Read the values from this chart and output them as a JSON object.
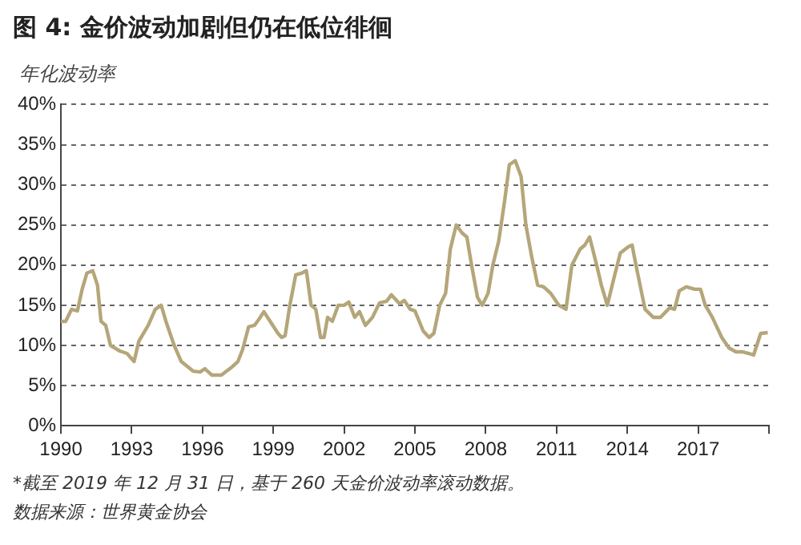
{
  "chart_data": {
    "type": "line",
    "title": "图 4: 金价波动加剧但仍在低位徘徊",
    "ylabel": "年化波动率",
    "annotations": [
      "*截至 2019 年 12 月 31 日，基于 260 天金价波动率滚动数据。",
      "数据来源：世界黄金协会"
    ],
    "x": [
      1990.0,
      1990.2,
      1990.45,
      1990.7,
      1990.9,
      1991.1,
      1991.35,
      1991.55,
      1991.7,
      1991.9,
      1992.1,
      1992.5,
      1992.8,
      1993.1,
      1993.3,
      1993.7,
      1994.0,
      1994.25,
      1994.45,
      1994.8,
      1995.1,
      1995.6,
      1995.9,
      1996.1,
      1996.4,
      1996.8,
      1997.2,
      1997.5,
      1997.7,
      1997.95,
      1998.2,
      1998.4,
      1998.6,
      1998.8,
      1999.2,
      1999.35,
      1999.5,
      1999.7,
      1999.95,
      2000.2,
      2000.4,
      2000.6,
      2000.8,
      2001.0,
      2001.15,
      2001.3,
      2001.5,
      2001.75,
      2002.0,
      2002.2,
      2002.45,
      2002.65,
      2002.9,
      2003.2,
      2003.5,
      2003.8,
      2004.0,
      2004.35,
      2004.55,
      2004.8,
      2005.0,
      2005.35,
      2005.6,
      2005.8,
      2006.05,
      2006.3,
      2006.5,
      2006.75,
      2007.0,
      2007.2,
      2007.4,
      2007.65,
      2007.85,
      2008.1,
      2008.3,
      2008.55,
      2008.8,
      2009.0,
      2009.25,
      2009.5,
      2009.7,
      2009.95,
      2010.2,
      2010.45,
      2010.75,
      2011.1,
      2011.4,
      2011.65,
      2012.0,
      2012.2,
      2012.4,
      2012.7,
      2012.9,
      2013.15,
      2013.4,
      2013.7,
      2014.05,
      2014.2,
      2014.4,
      2014.75,
      2015.1,
      2015.4,
      2015.8,
      2016.0,
      2016.2,
      2016.5,
      2016.85,
      2017.1,
      2017.3,
      2017.6,
      2018.0,
      2018.3,
      2018.6,
      2018.9,
      2019.15,
      2019.35,
      2019.65,
      2019.95
    ],
    "series": [
      {
        "color": "#b5a67a",
        "values": [
          13,
          13,
          14.5,
          14.3,
          17,
          19,
          19.3,
          17.5,
          13,
          12.5,
          10,
          9.3,
          9,
          8,
          10.5,
          12.5,
          14.5,
          15,
          13,
          10,
          8,
          6.8,
          6.7,
          7.1,
          6.3,
          6.3,
          7.2,
          8,
          9.5,
          12.3,
          12.5,
          13.3,
          14.2,
          13.3,
          11.5,
          11,
          11.2,
          15,
          18.8,
          19,
          19.3,
          15,
          14.5,
          11,
          11,
          13.5,
          13,
          15,
          15,
          15.4,
          13.5,
          14.2,
          12.5,
          13.5,
          15.3,
          15.5,
          16.3,
          15.2,
          15.6,
          14.5,
          14.3,
          11.8,
          11,
          11.5,
          15,
          16.5,
          22,
          25,
          24,
          23.5,
          20,
          16,
          15,
          16.5,
          20,
          23,
          28,
          32.5,
          33,
          31,
          25,
          21,
          17.5,
          17.3,
          16.5,
          15,
          14.5,
          20,
          22,
          22.5,
          23.5,
          20,
          17.5,
          15,
          18,
          21.5,
          22.3,
          22.5,
          19.5,
          14.5,
          13.5,
          13.5,
          14.7,
          14.5,
          16.8,
          17.3,
          17,
          17,
          15,
          13.5,
          11,
          9.7,
          9.2,
          9.2,
          9,
          8.8,
          11.5,
          11.6
        ]
      }
    ],
    "xlim": [
      1990,
      2020
    ],
    "xticks": [
      1990,
      1993,
      1996,
      1999,
      2002,
      2005,
      2008,
      2011,
      2014,
      2017,
      {
        "value": 2020,
        "label": null
      }
    ],
    "ylim": [
      0,
      40
    ],
    "yticks": [
      {
        "value": 0,
        "label": "0%"
      },
      {
        "value": 5,
        "label": "5%"
      },
      {
        "value": 10,
        "label": "10%"
      },
      {
        "value": 15,
        "label": "15%"
      },
      {
        "value": 20,
        "label": "20%"
      },
      {
        "value": 25,
        "label": "25%"
      },
      {
        "value": 30,
        "label": "30%"
      },
      {
        "value": 35,
        "label": "35%"
      },
      {
        "value": 40,
        "label": "40%"
      }
    ],
    "grid": "y",
    "legend": false,
    "marker": "none",
    "line_style": "solid"
  }
}
